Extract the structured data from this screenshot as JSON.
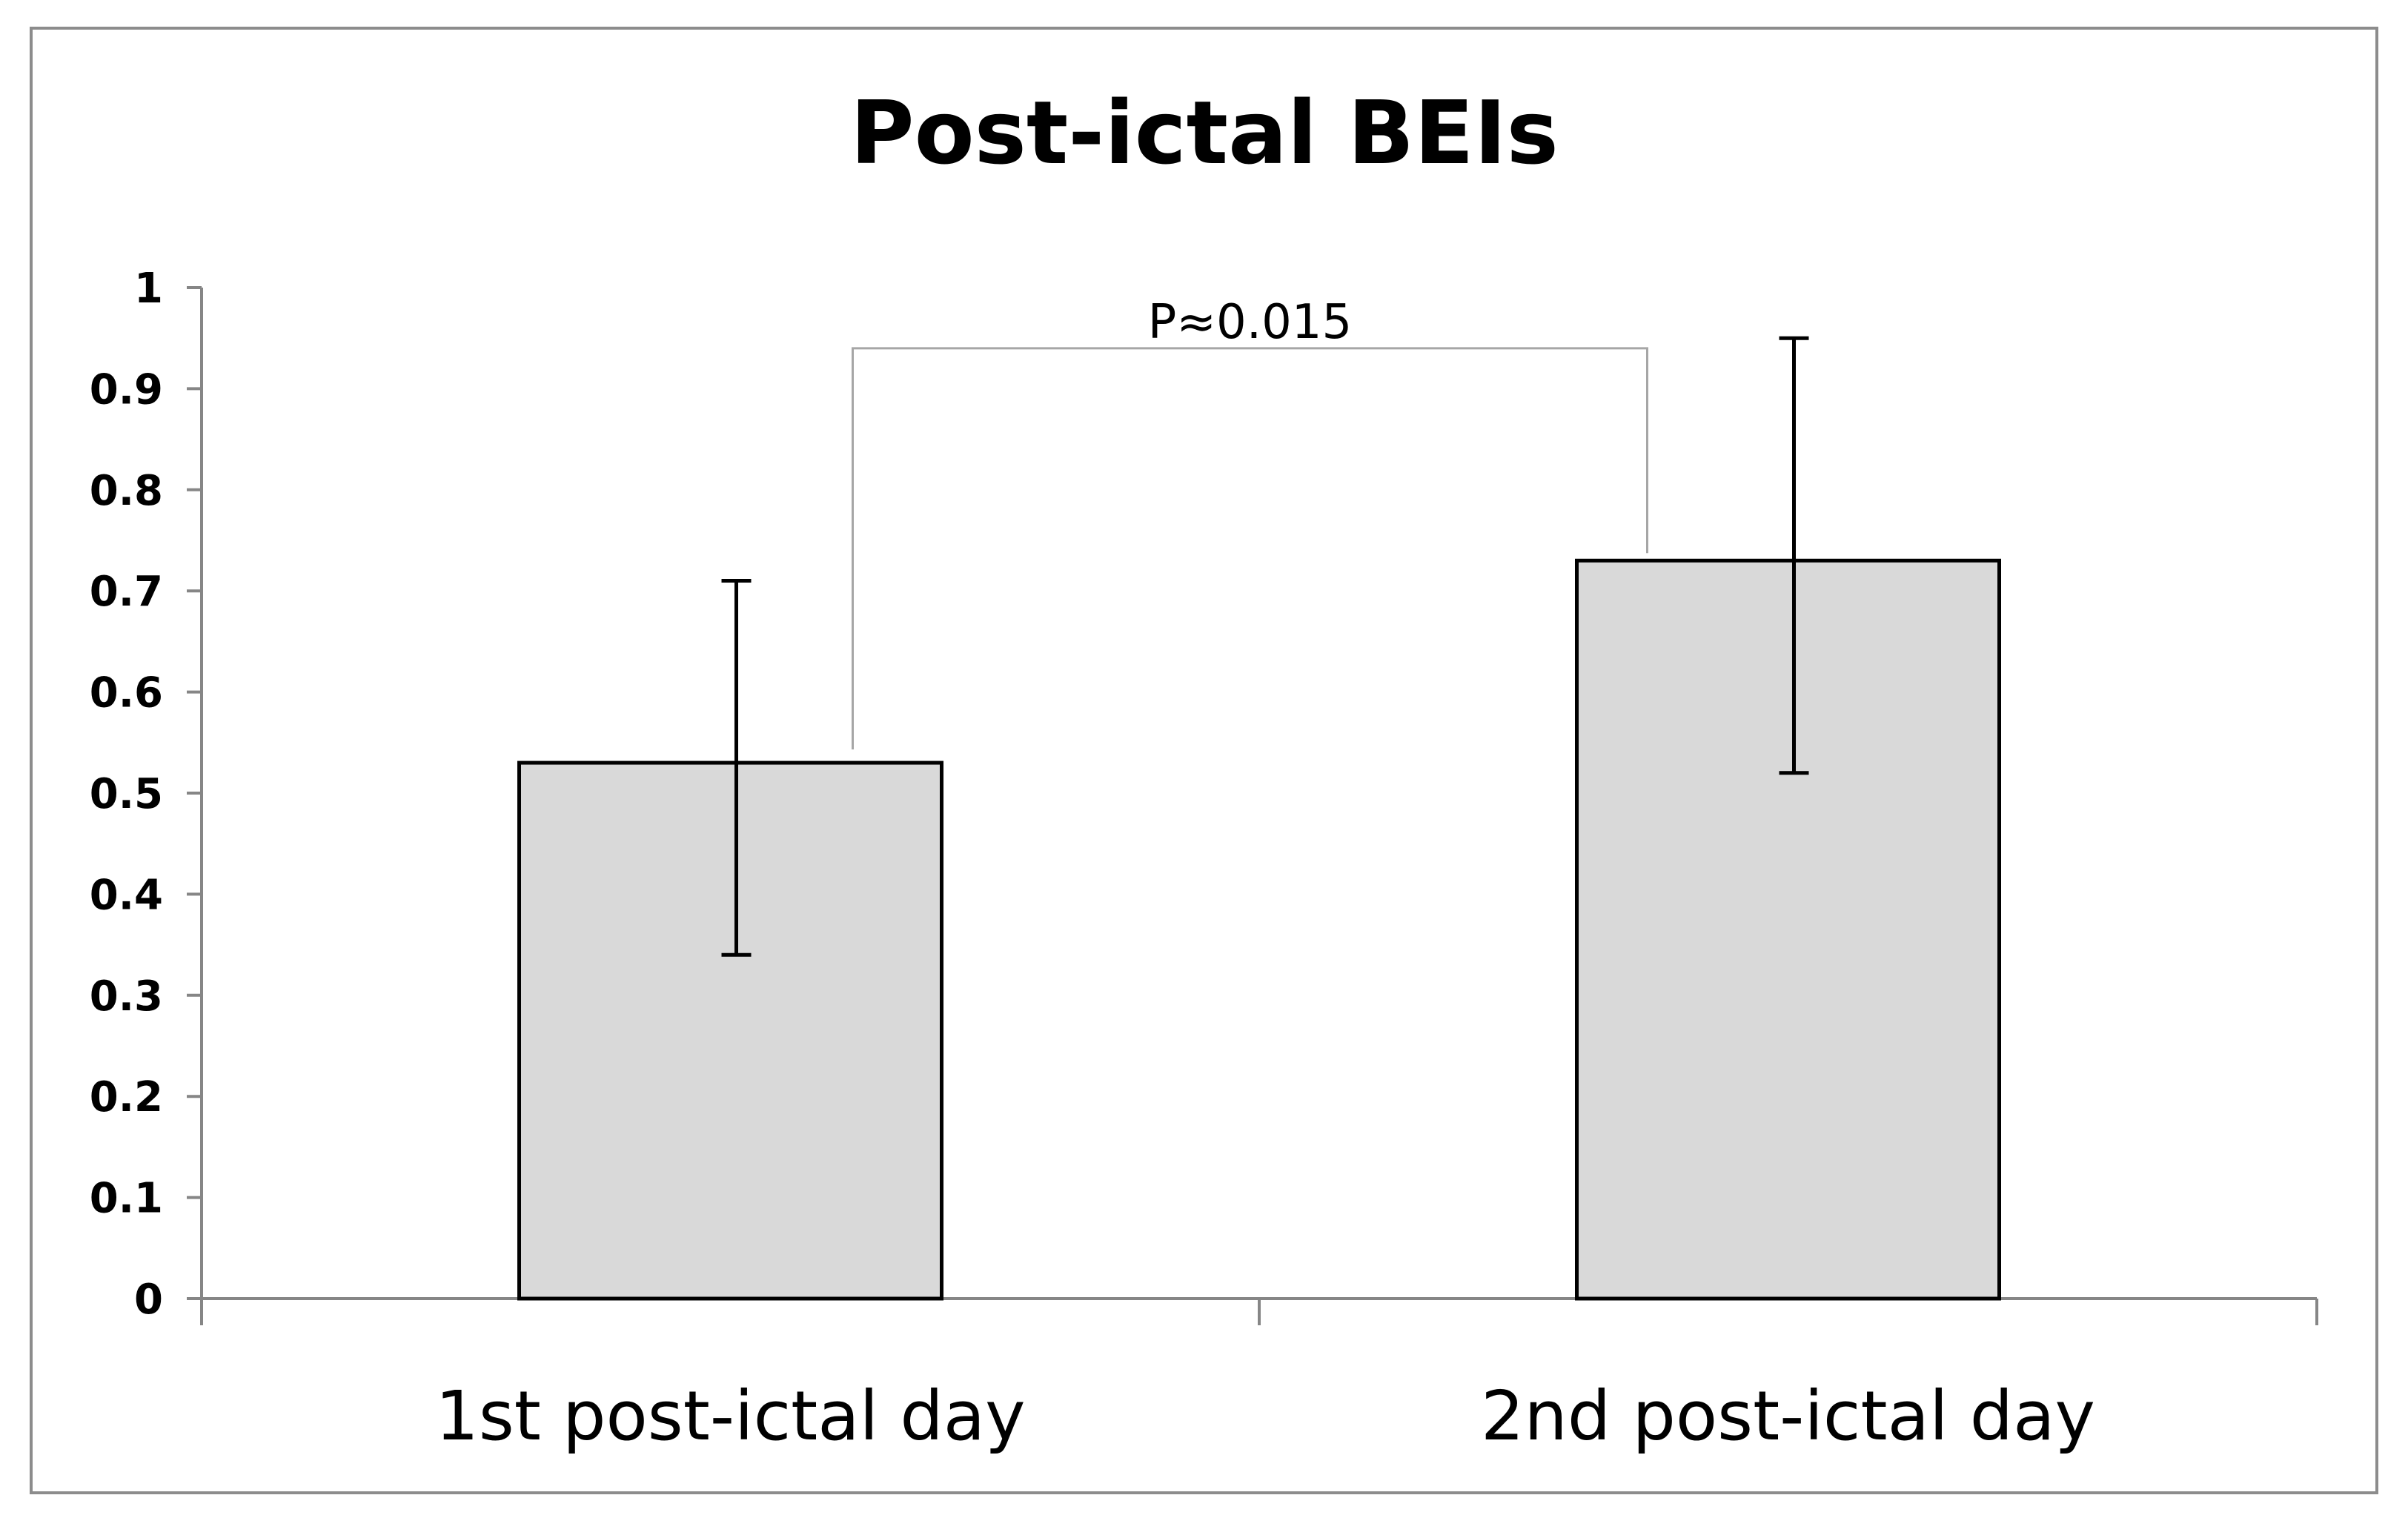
{
  "chart_data": {
    "type": "bar",
    "title": "Post-ictal BEIs",
    "xlabel": "",
    "ylabel": "",
    "categories": [
      "1st post-ictal day",
      "2nd post-ictal day"
    ],
    "values": [
      0.53,
      0.73
    ],
    "error_low": [
      0.34,
      0.52
    ],
    "error_high": [
      0.71,
      0.95
    ],
    "ylim": [
      0,
      1
    ],
    "yticks": [
      "0",
      "0.1",
      "0.2",
      "0.3",
      "0.4",
      "0.5",
      "0.6",
      "0.7",
      "0.8",
      "0.9",
      "1"
    ],
    "grid": false,
    "bar_color": "#d9d9d9",
    "annotation": {
      "text": "P≈0.015",
      "between": [
        0,
        1
      ],
      "bracket_level": 0.94
    }
  }
}
